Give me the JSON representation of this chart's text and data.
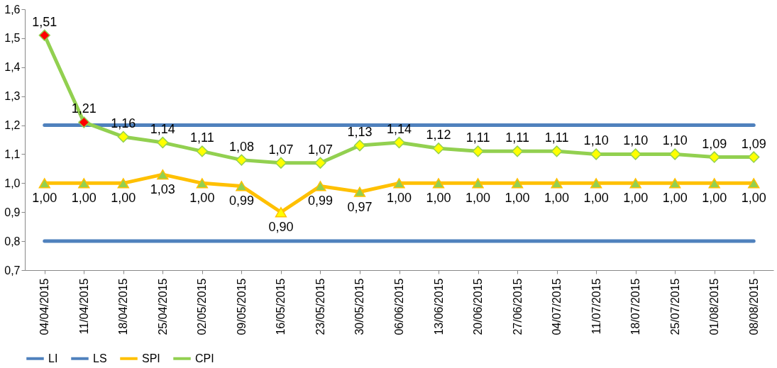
{
  "chart_data": {
    "type": "line",
    "categories": [
      "04/04/2015",
      "11/04/2015",
      "18/04/2015",
      "25/04/2015",
      "02/05/2015",
      "09/05/2015",
      "16/05/2015",
      "23/05/2015",
      "30/05/2015",
      "06/06/2015",
      "13/06/2015",
      "20/06/2015",
      "27/06/2015",
      "04/07/2015",
      "11/07/2015",
      "18/07/2015",
      "25/07/2015",
      "01/08/2015",
      "08/08/2015"
    ],
    "ylim": [
      0.7,
      1.6
    ],
    "yticks": [
      {
        "value": 0.7,
        "label": "0,7"
      },
      {
        "value": 0.8,
        "label": "0,8"
      },
      {
        "value": 0.9,
        "label": "0,9"
      },
      {
        "value": 1.0,
        "label": "1,0"
      },
      {
        "value": 1.1,
        "label": "1,1"
      },
      {
        "value": 1.2,
        "label": "1,2"
      },
      {
        "value": 1.3,
        "label": "1,3"
      },
      {
        "value": 1.4,
        "label": "1,4"
      },
      {
        "value": 1.5,
        "label": "1,5"
      },
      {
        "value": 1.6,
        "label": "1,6"
      }
    ],
    "grid": false,
    "legend": "bottom",
    "line_style": "solid",
    "series": [
      {
        "name": "LI",
        "color": "#4f81bd",
        "marker": "none",
        "values": [
          0.8,
          0.8,
          0.8,
          0.8,
          0.8,
          0.8,
          0.8,
          0.8,
          0.8,
          0.8,
          0.8,
          0.8,
          0.8,
          0.8,
          0.8,
          0.8,
          0.8,
          0.8,
          0.8
        ]
      },
      {
        "name": "LS",
        "color": "#4f81bd",
        "marker": "none",
        "values": [
          1.2,
          1.2,
          1.2,
          1.2,
          1.2,
          1.2,
          1.2,
          1.2,
          1.2,
          1.2,
          1.2,
          1.2,
          1.2,
          1.2,
          1.2,
          1.2,
          1.2,
          1.2,
          1.2
        ]
      },
      {
        "name": "SPI",
        "color": "#ffc000",
        "marker": "triangle",
        "colors": [
          "#92d050",
          "#92d050",
          "#92d050",
          "#92d050",
          "#92d050",
          "#92d050",
          "#ffff00",
          "#92d050",
          "#92d050",
          "#92d050",
          "#92d050",
          "#92d050",
          "#92d050",
          "#92d050",
          "#92d050",
          "#92d050",
          "#92d050",
          "#92d050",
          "#92d050"
        ],
        "values": [
          1.0,
          1.0,
          1.0,
          1.03,
          1.0,
          0.99,
          0.9,
          0.99,
          0.97,
          1.0,
          1.0,
          1.0,
          1.0,
          1.0,
          1.0,
          1.0,
          1.0,
          1.0,
          1.0
        ],
        "value_labels": [
          "1,00",
          "1,00",
          "1,00",
          "1,03",
          "1,00",
          "0,99",
          "0,90",
          "0,99",
          "0,97",
          "1,00",
          "1,00",
          "1,00",
          "1,00",
          "1,00",
          "1,00",
          "1,00",
          "1,00",
          "1,00",
          "1,00"
        ]
      },
      {
        "name": "CPI",
        "color": "#92d050",
        "marker": "diamond",
        "colors": [
          "#ff0000",
          "#ff0000",
          "#ffff00",
          "#ffff00",
          "#ffff00",
          "#ffff00",
          "#ffff00",
          "#ffff00",
          "#ffff00",
          "#ffff00",
          "#ffff00",
          "#ffff00",
          "#ffff00",
          "#ffff00",
          "#ffff00",
          "#ffff00",
          "#ffff00",
          "#ffff00",
          "#ffff00"
        ],
        "values": [
          1.51,
          1.21,
          1.16,
          1.14,
          1.11,
          1.08,
          1.07,
          1.07,
          1.13,
          1.14,
          1.12,
          1.11,
          1.11,
          1.11,
          1.1,
          1.1,
          1.1,
          1.09,
          1.09
        ],
        "value_labels": [
          "1,51",
          "1,21",
          "1,16",
          "1,14",
          "1,11",
          "1,08",
          "1,07",
          "1,07",
          "1,13",
          "1,14",
          "1,12",
          "1,11",
          "1,11",
          "1,11",
          "1,10",
          "1,10",
          "1,10",
          "1,09",
          "1,09"
        ]
      }
    ]
  }
}
